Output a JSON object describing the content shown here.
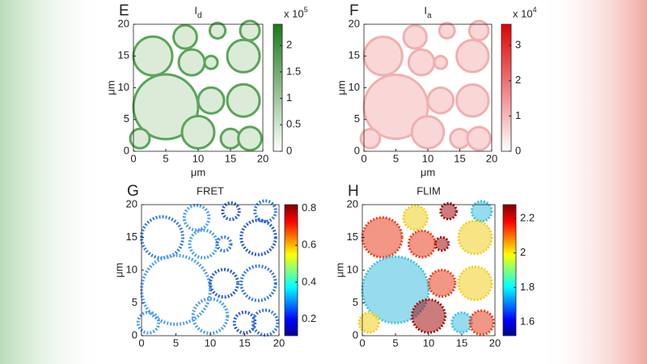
{
  "panels": [
    {
      "letter": "E",
      "title": "I",
      "title_sub": "d",
      "xlabel": "μm",
      "ylabel": "μm",
      "xlim": [
        0,
        20
      ],
      "ylim": [
        0,
        20
      ],
      "xticks": [
        0,
        5,
        10,
        15,
        20
      ],
      "yticks": [
        0,
        5,
        10,
        15,
        20
      ],
      "colormap": "green",
      "colorbar": {
        "clim": [
          0,
          2.4
        ],
        "ticks": [
          0,
          0.5,
          1,
          1.5,
          2
        ],
        "multiplier": "x 10",
        "exponent": "5"
      }
    },
    {
      "letter": "F",
      "title": "I",
      "title_sub": "a",
      "xlabel": "μm",
      "ylabel": "μm",
      "xlim": [
        0,
        20
      ],
      "ylim": [
        0,
        20
      ],
      "xticks": [
        0,
        5,
        10,
        15,
        20
      ],
      "yticks": [
        0,
        5,
        10,
        15,
        20
      ],
      "colormap": "red",
      "colorbar": {
        "clim": [
          0,
          3.6
        ],
        "ticks": [
          0,
          1,
          2,
          3
        ],
        "multiplier": "x 10",
        "exponent": "4"
      }
    },
    {
      "letter": "G",
      "title": "FRET",
      "ylabel": "μm",
      "xlim": [
        0,
        20
      ],
      "ylim": [
        0,
        20
      ],
      "xticks": [
        0,
        5,
        10,
        15,
        20
      ],
      "yticks": [
        0,
        5,
        10,
        15,
        20
      ],
      "colormap": "jet",
      "colorbar": {
        "clim": [
          0.11,
          0.82
        ],
        "ticks": [
          0.2,
          0.4,
          0.6,
          0.8
        ]
      }
    },
    {
      "letter": "H",
      "title": "FLIM",
      "ylabel": "μm",
      "xlim": [
        0,
        20
      ],
      "ylim": [
        0,
        20
      ],
      "xticks": [
        0,
        5,
        10,
        15,
        20
      ],
      "yticks": [
        0,
        5,
        10,
        15,
        20
      ],
      "colormap": "jet",
      "colorbar": {
        "clim": [
          1.52,
          2.28
        ],
        "ticks": [
          1.6,
          1.8,
          2,
          2.2
        ]
      }
    }
  ]
}
